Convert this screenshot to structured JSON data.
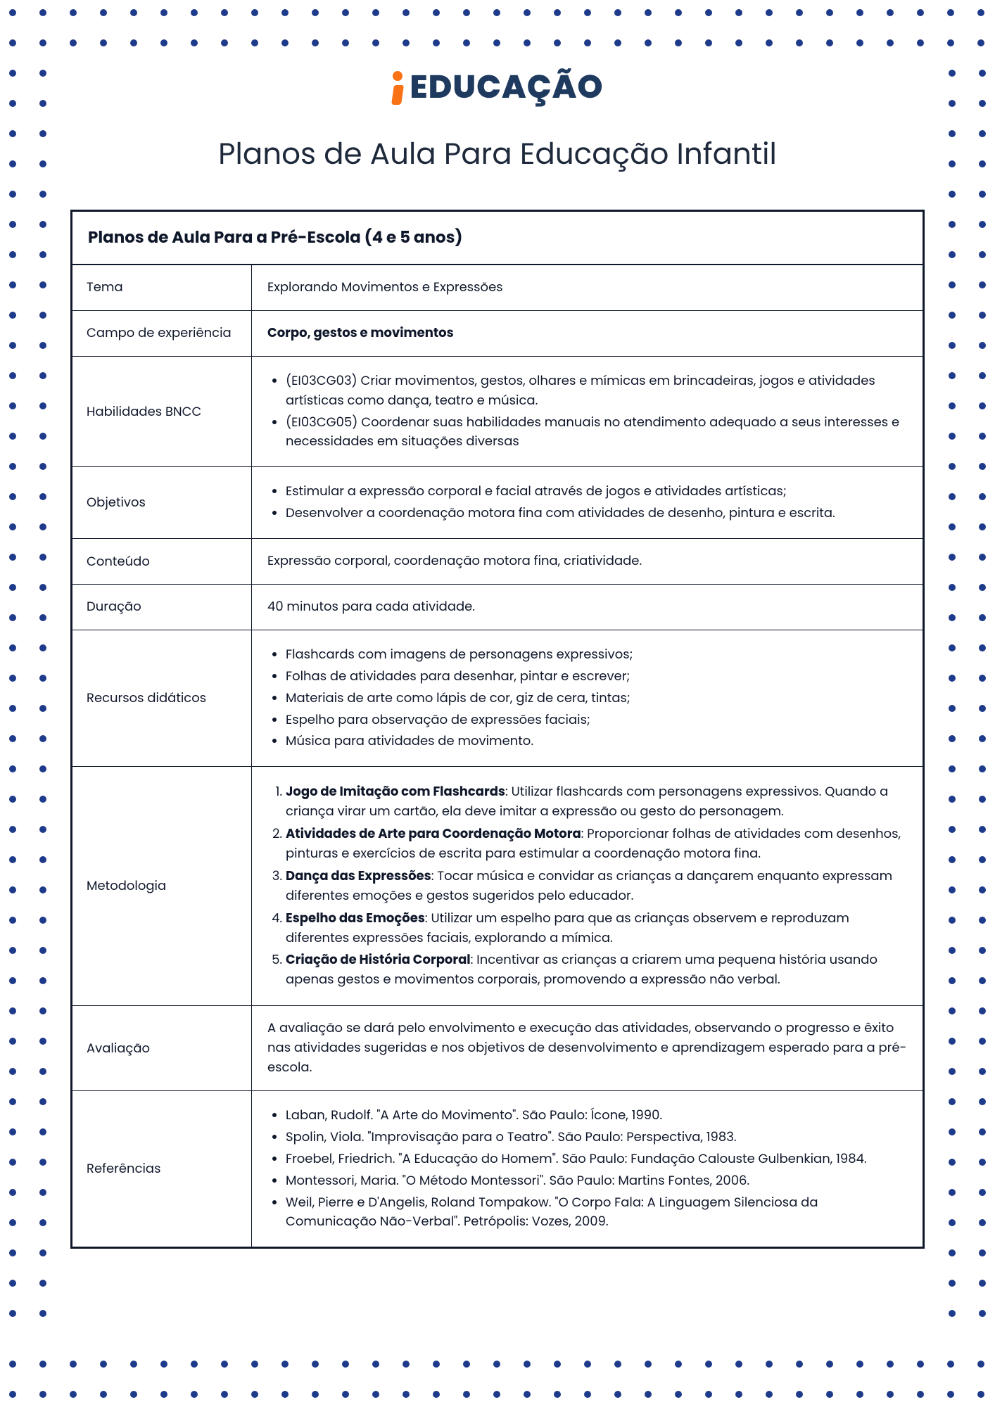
{
  "logo": {
    "text": "EDUCAÇÃO",
    "accent_color": "#f97316",
    "text_color": "#1e3a5f"
  },
  "page_title": "Planos de Aula Para Educação Infantil",
  "table_header": "Planos de Aula Para a Pré-Escola (4 e 5 anos)",
  "rows": {
    "tema": {
      "label": "Tema",
      "value": "Explorando Movimentos e Expressões"
    },
    "campo": {
      "label": "Campo de experiência",
      "value": "Corpo, gestos e movimentos"
    },
    "habilidades": {
      "label": "Habilidades BNCC",
      "items": [
        "(EI03CG03) Criar movimentos, gestos, olhares e mímicas em brincadeiras, jogos e atividades artísticas como dança, teatro e música.",
        "(EI03CG05) Coordenar suas habilidades manuais no atendimento adequado a seus interesses e necessidades em situações diversas"
      ]
    },
    "objetivos": {
      "label": "Objetivos",
      "items": [
        "Estimular a expressão corporal e facial através de jogos e atividades artísticas;",
        "Desenvolver a coordenação motora fina com atividades de desenho, pintura e escrita."
      ]
    },
    "conteudo": {
      "label": "Conteúdo",
      "value": "Expressão corporal, coordenação motora fina, criatividade."
    },
    "duracao": {
      "label": "Duração",
      "value": "40 minutos para cada atividade."
    },
    "recursos": {
      "label": "Recursos didáticos",
      "items": [
        "Flashcards com imagens de personagens expressivos;",
        "Folhas de atividades para desenhar, pintar e escrever;",
        "Materiais de arte como lápis de cor, giz de cera, tintas;",
        "Espelho para observação de expressões faciais;",
        "Música para atividades de movimento."
      ]
    },
    "metodologia": {
      "label": "Metodologia",
      "steps": [
        {
          "title": "Jogo de Imitação com Flashcards",
          "text": ": Utilizar flashcards com personagens expressivos. Quando a criança virar um cartão, ela deve imitar a expressão ou gesto do personagem."
        },
        {
          "title": "Atividades de Arte para Coordenação Motora",
          "text": ": Proporcionar folhas de atividades com desenhos, pinturas e exercícios de escrita para estimular a coordenação motora fina."
        },
        {
          "title": "Dança das Expressões",
          "text": ": Tocar música e convidar as crianças a dançarem enquanto expressam diferentes emoções e gestos sugeridos pelo educador."
        },
        {
          "title": "Espelho das Emoções",
          "text": ": Utilizar um espelho para que as crianças observem e reproduzam diferentes expressões faciais, explorando a mímica."
        },
        {
          "title": "Criação de História Corporal",
          "text": ": Incentivar as crianças a criarem uma pequena história usando apenas gestos e movimentos corporais, promovendo a expressão não verbal."
        }
      ]
    },
    "avaliacao": {
      "label": "Avaliação",
      "value": "A avaliação se dará pelo envolvimento e execução das atividades, observando o progresso e êxito nas atividades sugeridas e nos objetivos de desenvolvimento e aprendizagem esperado para a pré-escola."
    },
    "referencias": {
      "label": "Referências",
      "items": [
        "Laban, Rudolf. \"A Arte do Movimento\". São Paulo: Ícone, 1990.",
        "Spolin, Viola. \"Improvisação para o Teatro\". São Paulo: Perspectiva, 1983.",
        "Froebel, Friedrich. \"A Educação do Homem\". São Paulo: Fundação Calouste Gulbenkian, 1984.",
        "Montessori, Maria. \"O Método Montessori\". São Paulo: Martins Fontes, 2006.",
        "Weil, Pierre e D'Angelis, Roland Tompakow. \"O Corpo Fala: A Linguagem Silenciosa da Comunicação Não-Verbal\". Petrópolis: Vozes, 2009."
      ]
    }
  },
  "dot_style": {
    "color": "#1e3a8a",
    "size": 10,
    "spacing": 43,
    "margin": 18
  }
}
